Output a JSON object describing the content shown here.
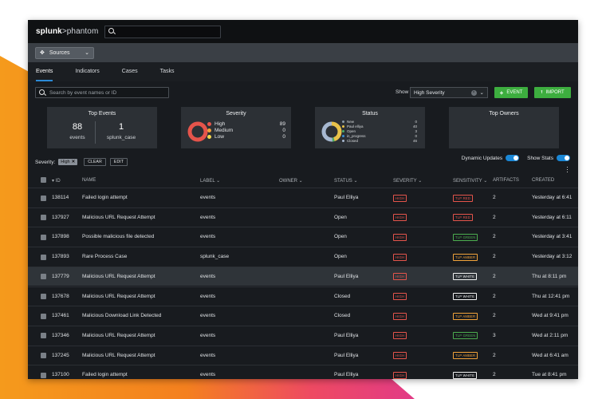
{
  "brand": {
    "name_bold": "splunk",
    "name_light": ">phantom"
  },
  "sources_label": "Sources",
  "tabs": [
    "Events",
    "Indicators",
    "Cases",
    "Tasks"
  ],
  "search_placeholder": "Search by event names or ID",
  "show_label": "Show",
  "show_value": "High Severity",
  "buttons": {
    "event": "EVENT",
    "import": "IMPORT"
  },
  "top_events": {
    "title": "Top Events",
    "items": [
      {
        "value": "88",
        "label": "events"
      },
      {
        "value": "1",
        "label": "splunk_case"
      }
    ]
  },
  "severity_card": {
    "title": "Severity",
    "items": [
      {
        "label": "High",
        "value": "89",
        "color": "#e5544b"
      },
      {
        "label": "Medium",
        "value": "0",
        "color": "#f2a33a"
      },
      {
        "label": "Low",
        "value": "0",
        "color": "#f5d94e"
      }
    ]
  },
  "status_card": {
    "title": "Status",
    "items": [
      {
        "label": "New",
        "value": "0",
        "color": "#8a9aa8"
      },
      {
        "label": "Paul elliya",
        "value": "40",
        "color": "#e8c24a"
      },
      {
        "label": "Open",
        "value": "3",
        "color": "#4cae68"
      },
      {
        "label": "in_progress",
        "value": "0",
        "color": "#3b8fd2"
      },
      {
        "label": "Closed",
        "value": "46",
        "color": "#a7b8d0"
      }
    ]
  },
  "top_owners_title": "Top Owners",
  "filter": {
    "label": "Severity:",
    "chip": "High",
    "clear": "CLEAR",
    "edit": "EDIT"
  },
  "toggles": {
    "dynamic": "Dynamic Updates",
    "stats": "Show Stats"
  },
  "columns": [
    "ID",
    "NAME",
    "LABEL",
    "OWNER",
    "STATUS",
    "SEVERITY",
    "SENSITIVITY",
    "ARTIFACTS",
    "CREATED"
  ],
  "rows": [
    {
      "id": "138114",
      "name": "Failed login attempt",
      "label": "events",
      "owner": "",
      "status": "Paul Elliya",
      "severity": "HIGH",
      "sensitivity": "TLP RED",
      "artifacts": "2",
      "created": "Yesterday at 6:41"
    },
    {
      "id": "137927",
      "name": "Malicious URL Request Attempt",
      "label": "events",
      "owner": "",
      "status": "Open",
      "severity": "HIGH",
      "sensitivity": "TLP RED",
      "artifacts": "2",
      "created": "Yesterday at 6:11"
    },
    {
      "id": "137898",
      "name": "Possible malicious file detected",
      "label": "events",
      "owner": "",
      "status": "Open",
      "severity": "HIGH",
      "sensitivity": "TLP GREEN",
      "artifacts": "2",
      "created": "Yesterday at 3:41"
    },
    {
      "id": "137893",
      "name": "Rare Process Case",
      "label": "splunk_case",
      "owner": "",
      "status": "Open",
      "severity": "HIGH",
      "sensitivity": "TLP AMBER",
      "artifacts": "2",
      "created": "Yesterday at 3:12"
    },
    {
      "id": "137779",
      "name": "Malicious URL Request Attempt",
      "label": "events",
      "owner": "",
      "status": "Paul Elliya",
      "severity": "HIGH",
      "sensitivity": "TLP WHITE",
      "artifacts": "2",
      "created": "Thu at 8:11 pm"
    },
    {
      "id": "137678",
      "name": "Malicious URL Request Attempt",
      "label": "events",
      "owner": "",
      "status": "Closed",
      "severity": "HIGH",
      "sensitivity": "TLP WHITE",
      "artifacts": "2",
      "created": "Thu at 12:41 pm"
    },
    {
      "id": "137461",
      "name": "Malicious Download Link Detected",
      "label": "events",
      "owner": "",
      "status": "Closed",
      "severity": "HIGH",
      "sensitivity": "TLP AMBER",
      "artifacts": "2",
      "created": "Wed at 9:41 pm"
    },
    {
      "id": "137346",
      "name": "Malicious URL Request Attempt",
      "label": "events",
      "owner": "",
      "status": "Paul Elliya",
      "severity": "HIGH",
      "sensitivity": "TLP GREEN",
      "artifacts": "3",
      "created": "Wed at 2:11 pm"
    },
    {
      "id": "137245",
      "name": "Malicious URL Request Attempt",
      "label": "events",
      "owner": "",
      "status": "Paul Elliya",
      "severity": "HIGH",
      "sensitivity": "TLP AMBER",
      "artifacts": "2",
      "created": "Wed at 6:41 am"
    },
    {
      "id": "137100",
      "name": "Failed login attempt",
      "label": "events",
      "owner": "",
      "status": "Paul Elliya",
      "severity": "HIGH",
      "sensitivity": "TLP WHITE",
      "artifacts": "2",
      "created": "Tue at 8:41 pm"
    }
  ],
  "highlighted_row": 4,
  "tlp_colors": {
    "TLP RED": "#e5544b",
    "TLP GREEN": "#4cae4f",
    "TLP AMBER": "#f2a33a",
    "TLP WHITE": "#f2f2f2",
    "HIGH": "#e5544b"
  }
}
